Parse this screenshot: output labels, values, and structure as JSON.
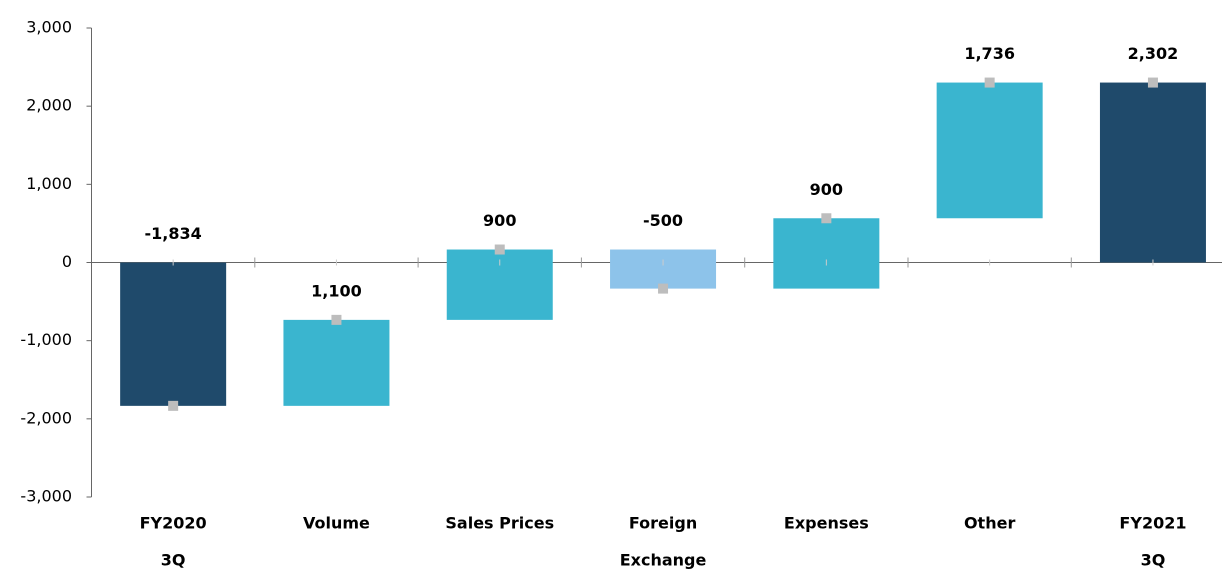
{
  "chart_data": {
    "type": "waterfall",
    "categories": [
      [
        "FY2020",
        "3Q"
      ],
      [
        "Volume"
      ],
      [
        "Sales Prices"
      ],
      [
        "Foreign",
        "Exchange"
      ],
      [
        "Expenses"
      ],
      [
        "Other"
      ],
      [
        "FY2021",
        "3Q"
      ]
    ],
    "values": [
      -1834,
      1100,
      900,
      -500,
      900,
      1736,
      2302
    ],
    "value_labels": [
      "-1,834",
      "1,100",
      "900",
      "-500",
      "900",
      "1,736",
      "2,302"
    ],
    "is_total": [
      true,
      false,
      false,
      false,
      false,
      false,
      true
    ],
    "colors": {
      "total": "#1f4a6b",
      "increase": "#3ab5cf",
      "decrease": "#8dc3ea",
      "marker": "#bdbdbd"
    },
    "ylim": [
      -3000,
      3000
    ],
    "yticks": [
      {
        "value": -3000,
        "label": "-3,000"
      },
      {
        "value": -2000,
        "label": "-2,000"
      },
      {
        "value": -1000,
        "label": "-1,000"
      },
      0,
      {
        "value": 1000,
        "label": "1,000"
      },
      {
        "value": 2000,
        "label": "2,000"
      },
      {
        "value": 3000,
        "label": "3,000"
      }
    ]
  }
}
